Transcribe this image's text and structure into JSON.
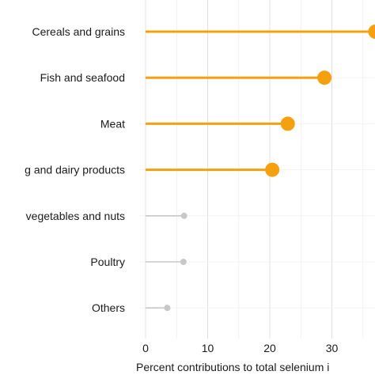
{
  "chart_data": {
    "type": "lollipop",
    "xlabel": "Percent contributions to total selenium i",
    "xlim": [
      0,
      37
    ],
    "xticks": [
      0,
      10,
      20,
      30
    ],
    "grid": true,
    "categories": [
      "Cereals and grains",
      "Fish and seafood",
      "Meat",
      "g and dairy products",
      "vegetables and nuts",
      "Poultry",
      "Others"
    ],
    "values": [
      37,
      28.8,
      22.9,
      20.4,
      6.2,
      6.1,
      3.5
    ],
    "highlight": [
      true,
      true,
      true,
      true,
      false,
      false,
      false
    ],
    "colors": {
      "highlight": "#F5A00F",
      "muted": "#C8C8C8",
      "grid": "#E0E0E0"
    }
  }
}
